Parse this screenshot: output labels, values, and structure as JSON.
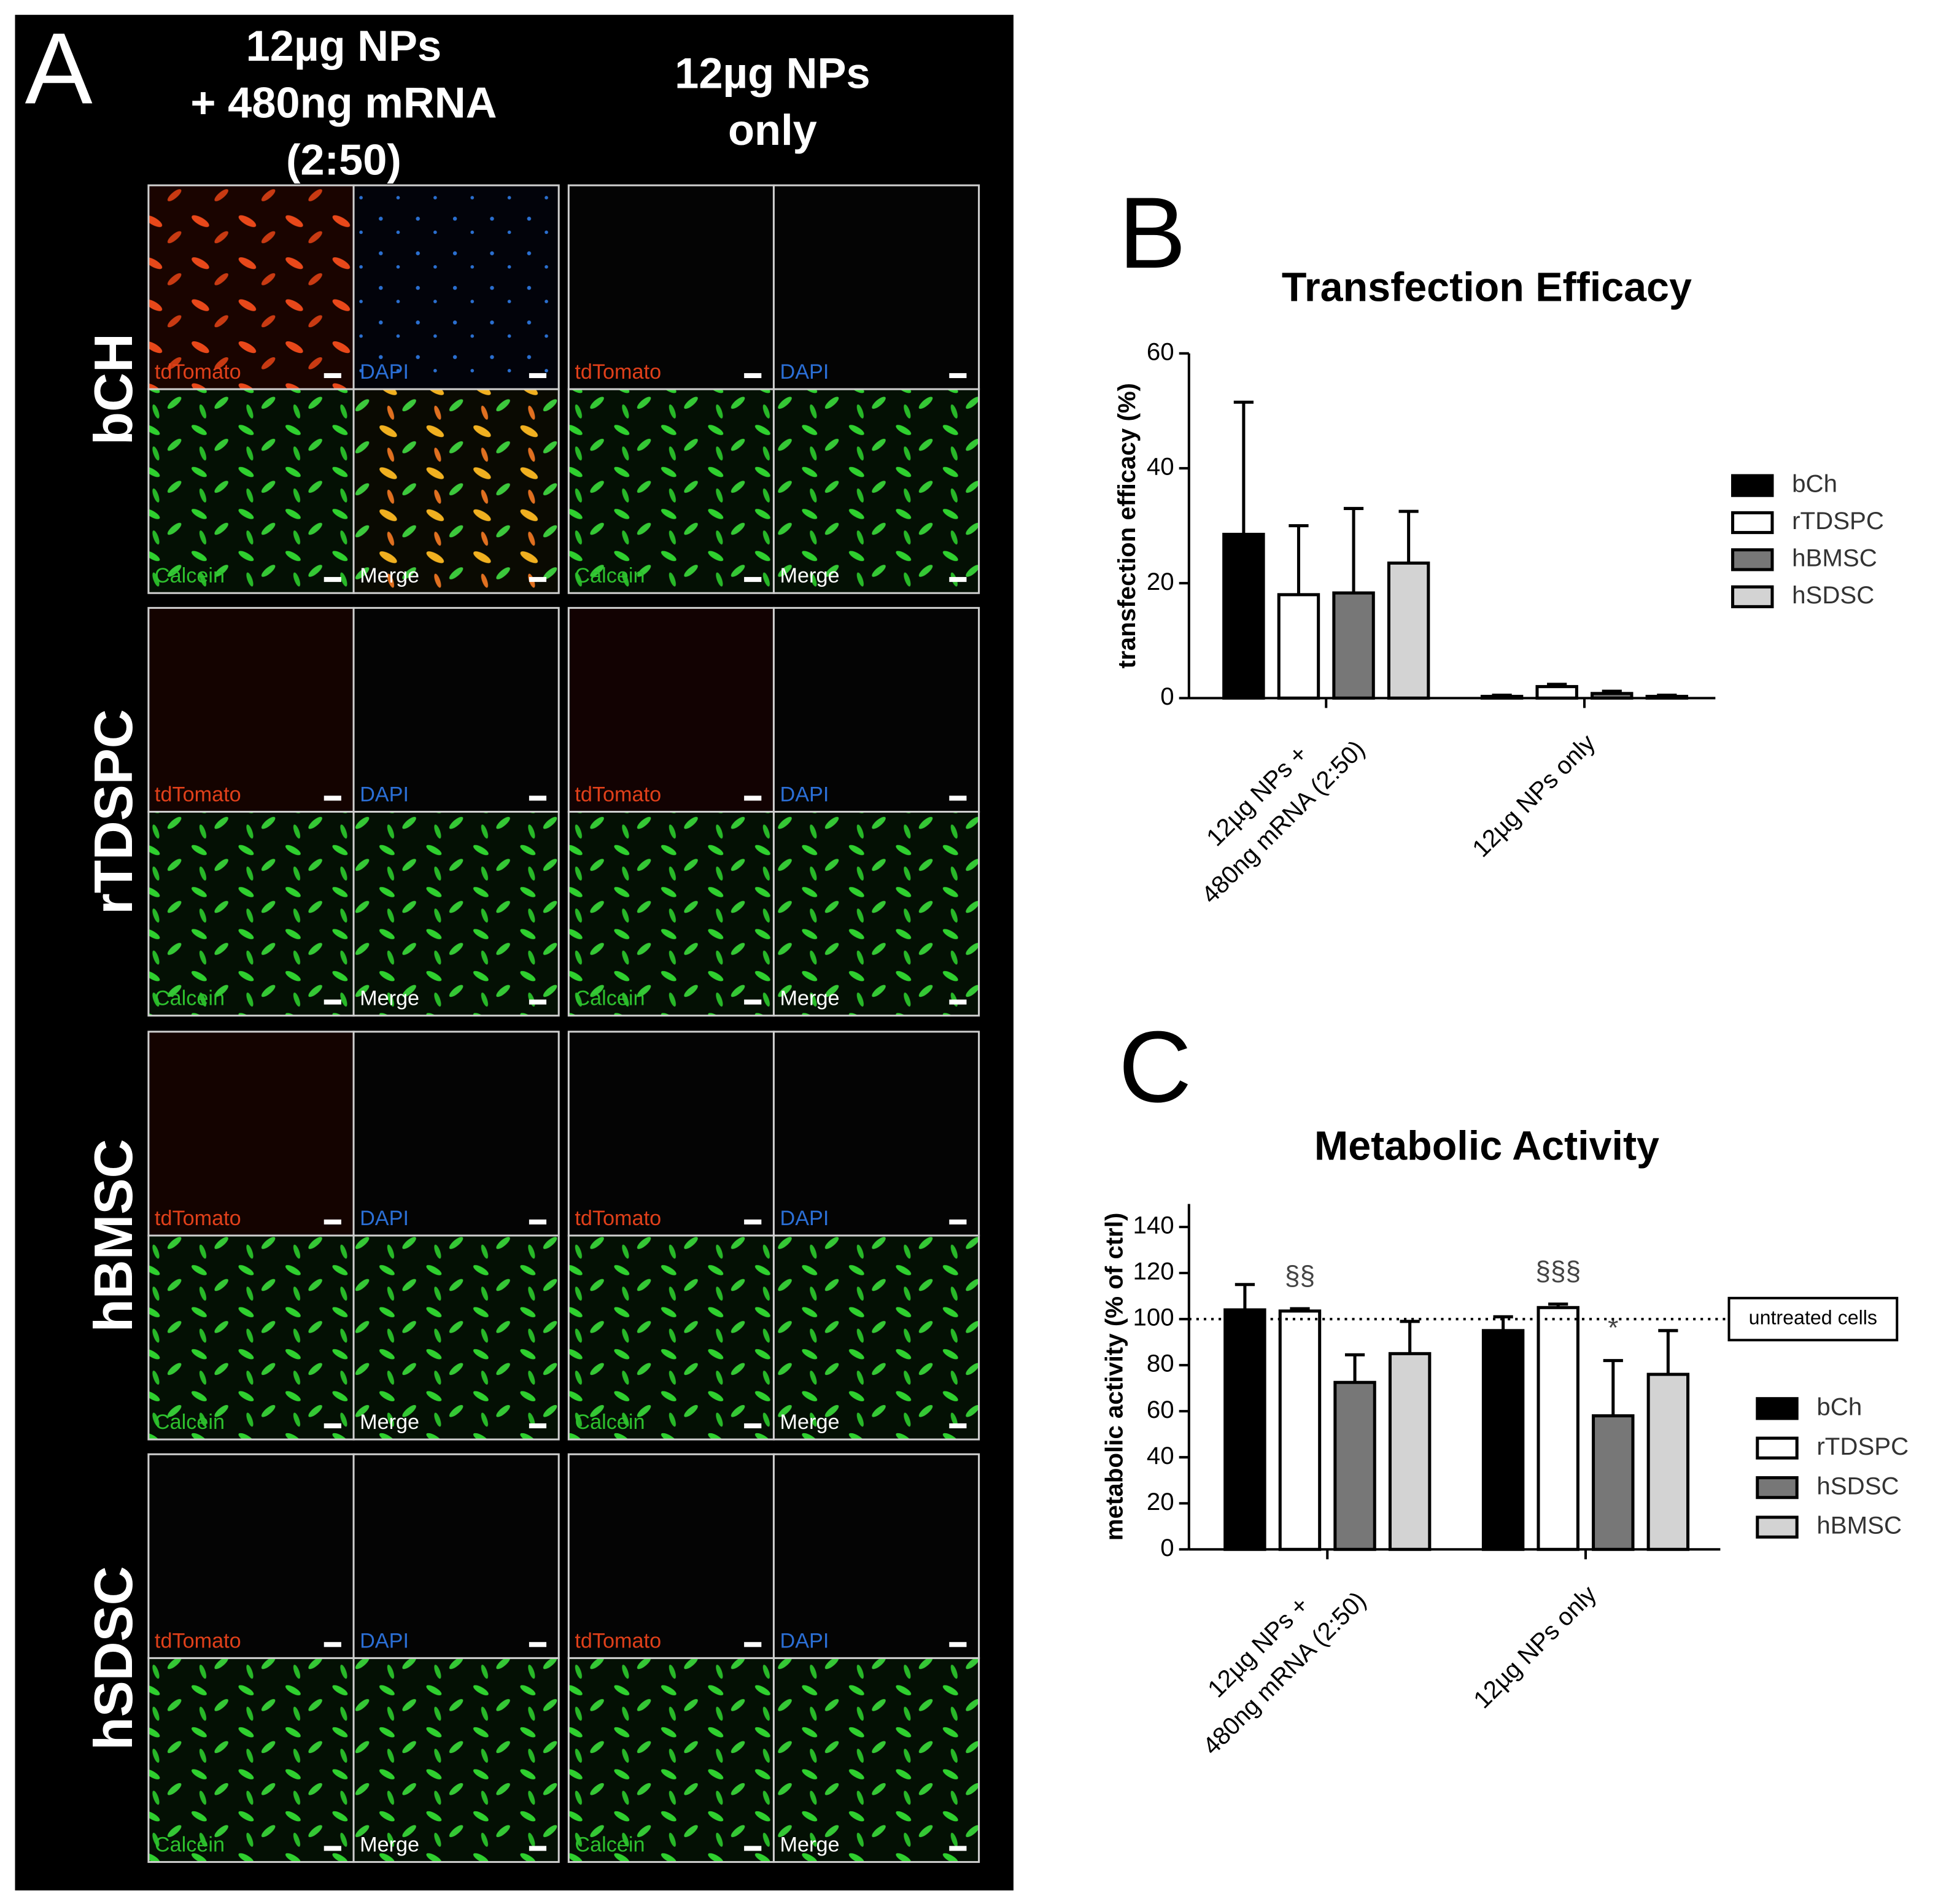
{
  "panel_a": {
    "label": "A",
    "columns": [
      [
        "12µg NPs",
        "+ 480ng mRNA",
        "(2:50)"
      ],
      [
        "12µg NPs",
        "only"
      ]
    ],
    "rows": [
      "bCH",
      "rTDSPC",
      "hBMSC",
      "hSDSC"
    ],
    "channels": [
      "tdTomato",
      "DAPI",
      "Calcein",
      "Merge"
    ]
  },
  "chart_data": [
    {
      "type": "bar",
      "panel_label": "B",
      "title": "Transfection Efficacy",
      "y_label": "transfection efficacy (%)",
      "categories": [
        [
          "12µg NPs +",
          "480ng mRNA (2:50)"
        ],
        [
          "12µg NPs only"
        ]
      ],
      "series": [
        {
          "name": "bCh",
          "color": "#000000",
          "values": [
            28.5,
            0.3
          ],
          "errors": [
            23,
            0.2
          ]
        },
        {
          "name": "rTDSPC",
          "color": "#ffffff",
          "values": [
            18,
            2
          ],
          "errors": [
            12,
            0.4
          ]
        },
        {
          "name": "hBMSC",
          "color": "#777777",
          "values": [
            18.3,
            0.8
          ],
          "errors": [
            14.7,
            0.4
          ]
        },
        {
          "name": "hSDSC",
          "color": "#d3d3d3",
          "values": [
            23.5,
            0.3
          ],
          "errors": [
            9,
            0.2
          ]
        }
      ],
      "ylim": [
        0,
        60
      ],
      "yticks": [
        0,
        20,
        40,
        60
      ],
      "legend": "right"
    },
    {
      "type": "bar",
      "panel_label": "C",
      "title": "Metabolic Activity",
      "y_label": "metabolic activity (% of ctrl)",
      "categories": [
        [
          "12µg NPs +",
          "480ng mRNA (2:50)"
        ],
        [
          "12µg NPs only"
        ]
      ],
      "series": [
        {
          "name": "bCh",
          "color": "#000000",
          "values": [
            104,
            95
          ],
          "errors": [
            11,
            6
          ]
        },
        {
          "name": "rTDSPC",
          "color": "#ffffff",
          "values": [
            103.5,
            105
          ],
          "errors": [
            1,
            1.5
          ],
          "annotations": [
            "§§",
            "§§§"
          ]
        },
        {
          "name": "hSDSC",
          "color": "#777777",
          "values": [
            72.5,
            58
          ],
          "errors": [
            12,
            24
          ],
          "annotations": [
            null,
            "*"
          ]
        },
        {
          "name": "hBMSC",
          "color": "#d3d3d3",
          "values": [
            85,
            76
          ],
          "errors": [
            14,
            19
          ]
        }
      ],
      "ylim": [
        0,
        150
      ],
      "yticks": [
        0,
        20,
        40,
        60,
        80,
        100,
        120,
        140
      ],
      "reference_line": {
        "value": 100,
        "label": "untreated cells"
      },
      "legend": "right"
    }
  ]
}
